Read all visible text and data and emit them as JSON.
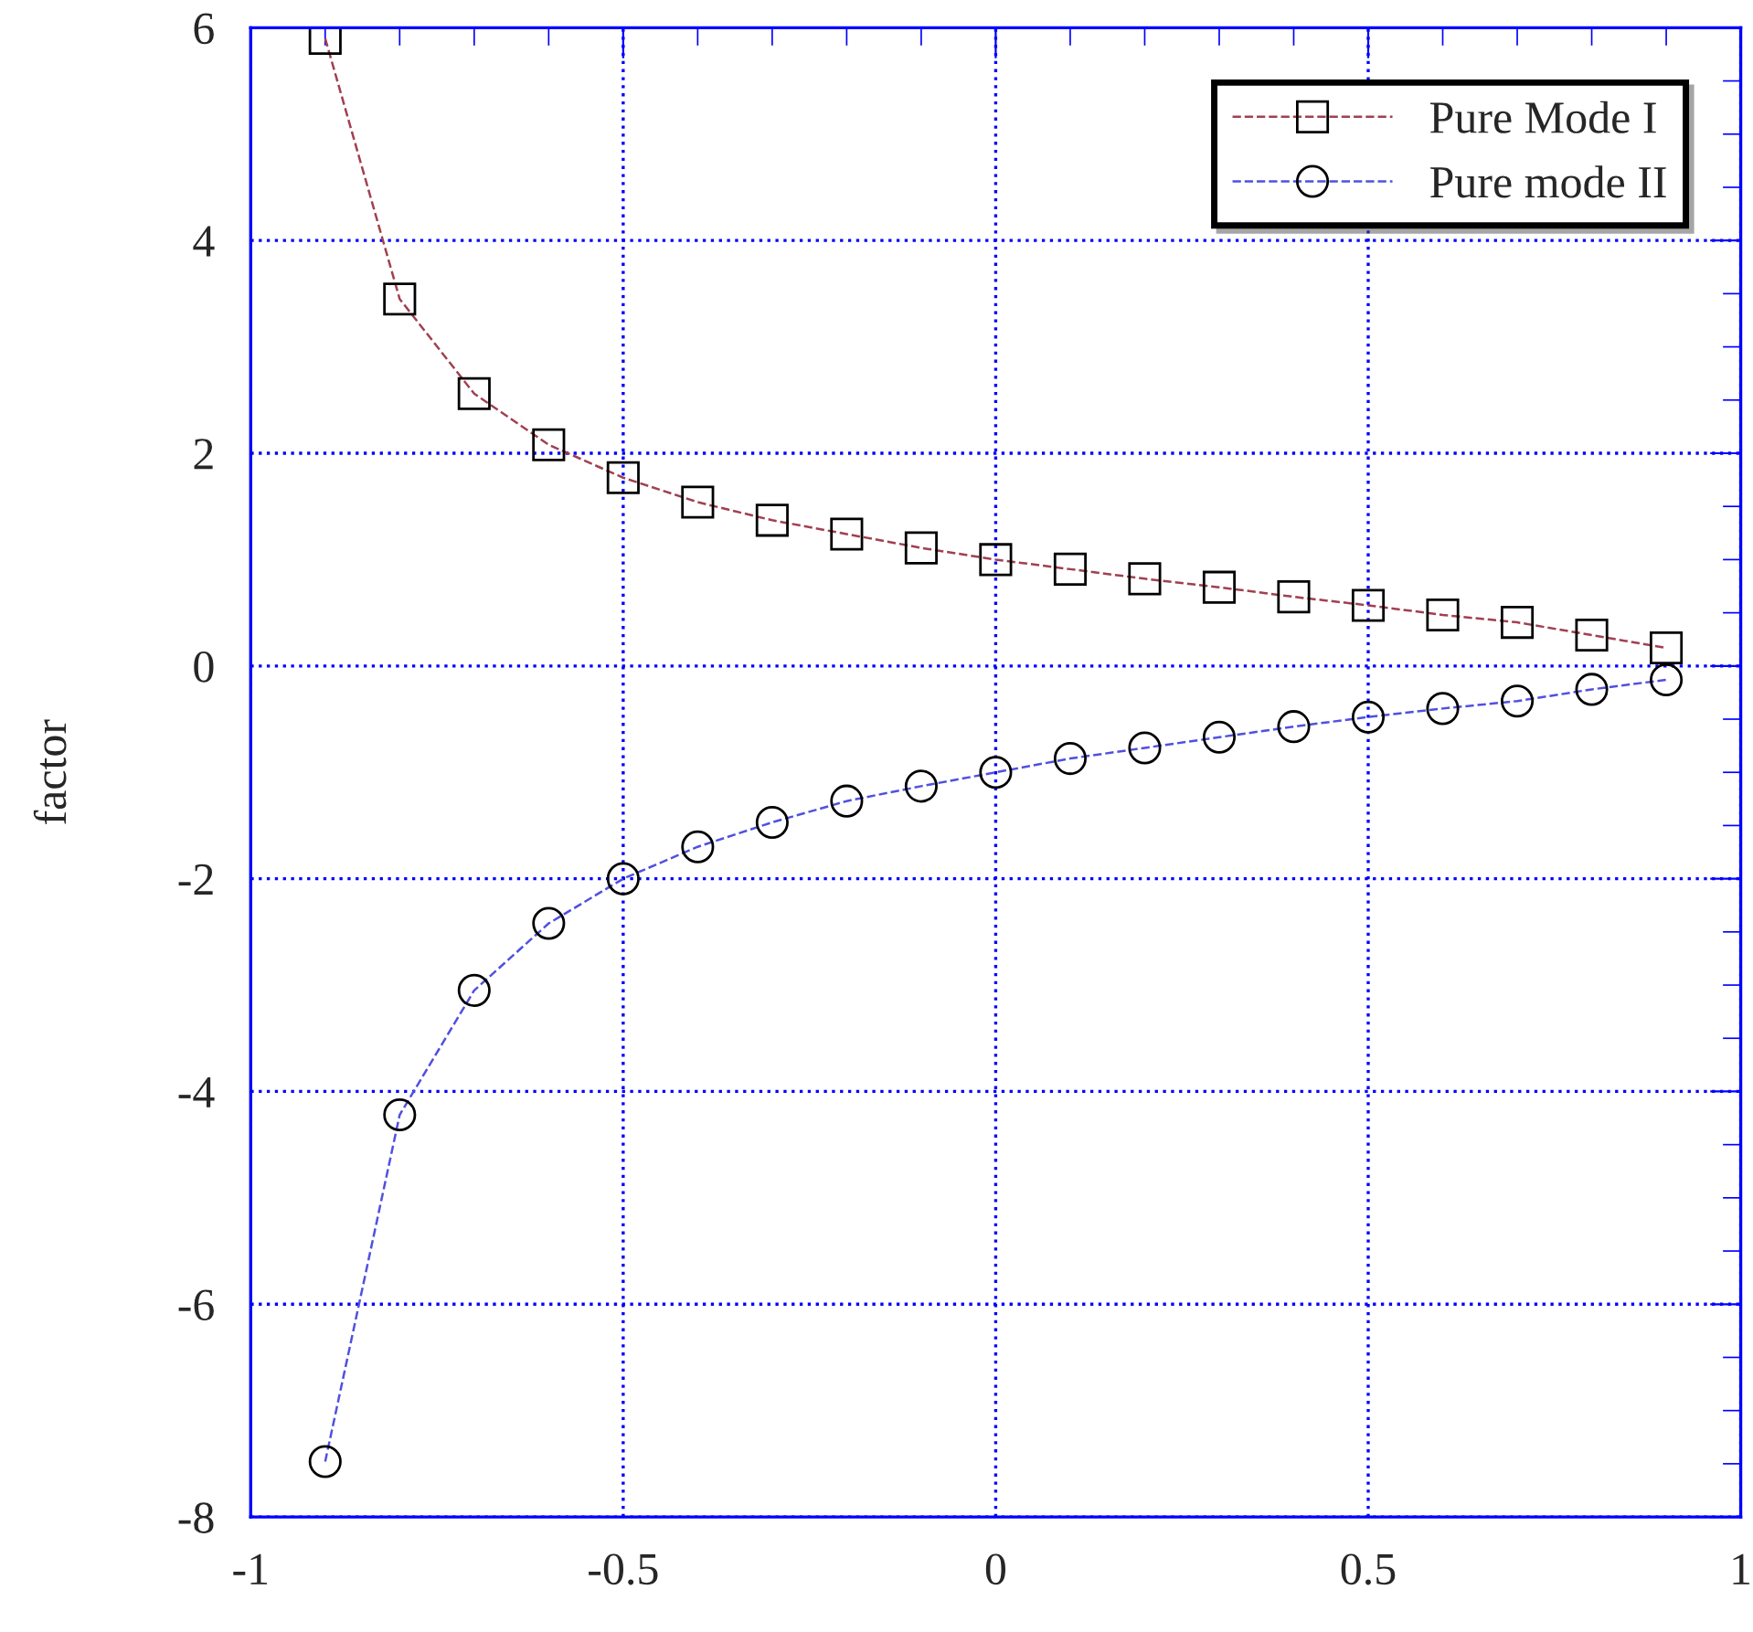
{
  "chart_data": {
    "type": "line",
    "ylabel": "factor",
    "x": [
      -0.9,
      -0.8,
      -0.7,
      -0.6,
      -0.5,
      -0.4,
      -0.3,
      -0.2,
      -0.1,
      0,
      0.1,
      0.2,
      0.3,
      0.4,
      0.5,
      0.6,
      0.7,
      0.8,
      0.9
    ],
    "series": [
      {
        "name": "Pure Mode I",
        "color": "#a04050",
        "marker": "square",
        "values": [
          5.9,
          3.45,
          2.56,
          2.08,
          1.77,
          1.54,
          1.37,
          1.24,
          1.11,
          1.0,
          0.91,
          0.82,
          0.74,
          0.65,
          0.57,
          0.48,
          0.41,
          0.29,
          0.17
        ]
      },
      {
        "name": "Pure mode II",
        "color": "#5050e0",
        "marker": "circle",
        "values": [
          -7.48,
          -4.22,
          -3.05,
          -2.42,
          -2.0,
          -1.7,
          -1.47,
          -1.27,
          -1.13,
          -1.0,
          -0.87,
          -0.77,
          -0.67,
          -0.57,
          -0.48,
          -0.4,
          -0.33,
          -0.22,
          -0.13
        ]
      }
    ],
    "xlim": [
      -1,
      1
    ],
    "xticks": [
      -1,
      -0.5,
      0,
      0.5,
      1
    ],
    "ylim": [
      -8,
      6
    ],
    "yticks": [
      -8,
      -6,
      -4,
      -2,
      0,
      2,
      4,
      6
    ],
    "grid": true,
    "legend": "top right",
    "line_style": "dashed"
  }
}
